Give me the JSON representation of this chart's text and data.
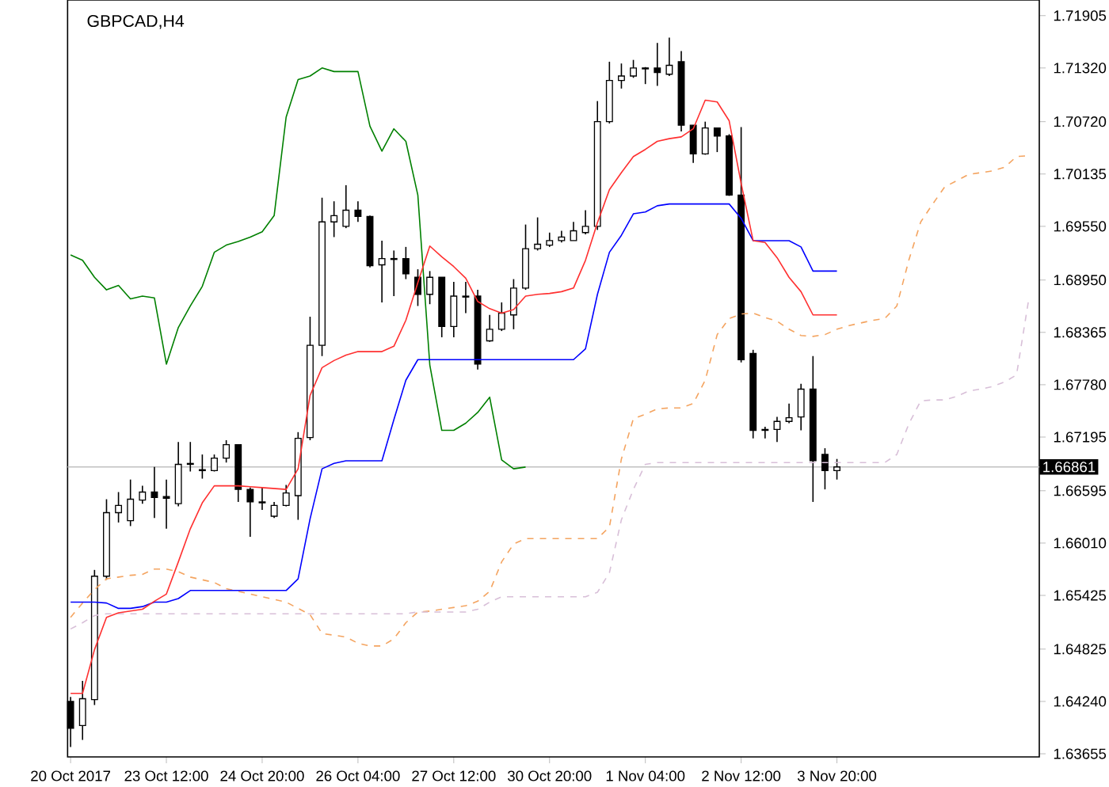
{
  "chart_data": {
    "type": "candlestick",
    "title": "GBPCAD,H4",
    "categories": [
      "20 Oct 2017",
      null,
      null,
      null,
      null,
      null,
      null,
      null,
      "23 Oct 12:00",
      null,
      null,
      null,
      null,
      null,
      null,
      null,
      "24 Oct 20:00",
      null,
      null,
      null,
      null,
      null,
      null,
      null,
      "26 Oct 04:00",
      null,
      null,
      null,
      null,
      null,
      null,
      null,
      "27 Oct 12:00",
      null,
      null,
      null,
      null,
      null,
      null,
      null,
      "30 Oct 20:00",
      null,
      null,
      null,
      null,
      null,
      null,
      null,
      "1 Nov 04:00",
      null,
      null,
      null,
      null,
      null,
      null,
      null,
      "2 Nov 12:00",
      null,
      null,
      null,
      null,
      null,
      null,
      null,
      "3 Nov 20:00",
      null,
      null,
      null,
      null,
      null,
      null,
      null,
      null,
      null,
      null,
      null,
      null,
      null,
      null,
      null,
      null
    ],
    "ohlc": [
      [
        1.6424,
        1.6429,
        1.6373,
        1.6394
      ],
      [
        1.6397,
        1.6447,
        1.6381,
        1.6427
      ],
      [
        1.6426,
        1.6571,
        1.642,
        1.6564
      ],
      [
        1.6564,
        1.665,
        1.656,
        1.6635
      ],
      [
        1.6635,
        1.6658,
        1.6624,
        1.6643
      ],
      [
        1.6626,
        1.6672,
        1.662,
        1.665
      ],
      [
        1.6649,
        1.6665,
        1.6645,
        1.6658
      ],
      [
        1.6658,
        1.6686,
        1.6629,
        1.6652
      ],
      [
        1.6653,
        1.6672,
        1.6617,
        1.6651
      ],
      [
        1.6645,
        1.6714,
        1.6642,
        1.6689
      ],
      [
        1.6689,
        1.6714,
        1.6681,
        1.669
      ],
      [
        1.6682,
        1.67,
        1.6673,
        1.6683
      ],
      [
        1.6682,
        1.67,
        1.6681,
        1.6696
      ],
      [
        1.6696,
        1.6716,
        1.6691,
        1.6711
      ],
      [
        1.6711,
        1.6711,
        1.6647,
        1.6661
      ],
      [
        1.6661,
        1.6663,
        1.6608,
        1.6647
      ],
      [
        1.6647,
        1.6663,
        1.6638,
        1.6646
      ],
      [
        1.6631,
        1.6647,
        1.6629,
        1.6643
      ],
      [
        1.6643,
        1.6666,
        1.6642,
        1.6657
      ],
      [
        1.6654,
        1.6725,
        1.6627,
        1.6718
      ],
      [
        1.6719,
        1.6854,
        1.6716,
        1.6822
      ],
      [
        1.6822,
        1.6987,
        1.681,
        1.696
      ],
      [
        1.696,
        1.6983,
        1.6943,
        1.6967
      ],
      [
        1.6955,
        1.7001,
        1.6953,
        1.6973
      ],
      [
        1.6973,
        1.6983,
        1.696,
        1.6966
      ],
      [
        1.6966,
        1.6967,
        1.6909,
        1.6911
      ],
      [
        1.6912,
        1.6939,
        1.687,
        1.6919
      ],
      [
        1.6919,
        1.6928,
        1.6877,
        1.6918
      ],
      [
        1.6919,
        1.6932,
        1.6896,
        1.6902
      ],
      [
        1.6898,
        1.6907,
        1.6866,
        1.6879
      ],
      [
        1.6879,
        1.6905,
        1.6868,
        1.6898
      ],
      [
        1.6898,
        1.6898,
        1.6831,
        1.6843
      ],
      [
        1.6843,
        1.6893,
        1.6831,
        1.6877
      ],
      [
        1.6877,
        1.6893,
        1.6858,
        1.6876
      ],
      [
        1.6877,
        1.6884,
        1.6795,
        1.6801
      ],
      [
        1.6827,
        1.6856,
        1.6826,
        1.684
      ],
      [
        1.684,
        1.687,
        1.6838,
        1.6858
      ],
      [
        1.6856,
        1.6896,
        1.684,
        1.6886
      ],
      [
        1.6886,
        1.6957,
        1.6884,
        1.693
      ],
      [
        1.693,
        1.6965,
        1.6928,
        1.6935
      ],
      [
        1.6934,
        1.6948,
        1.6932,
        1.6939
      ],
      [
        1.6939,
        1.695,
        1.6937,
        1.6943
      ],
      [
        1.6939,
        1.696,
        1.6939,
        1.695
      ],
      [
        1.6948,
        1.6973,
        1.6946,
        1.6955
      ],
      [
        1.6955,
        1.7095,
        1.6951,
        1.7072
      ],
      [
        1.7072,
        1.7139,
        1.707,
        1.7118
      ],
      [
        1.7118,
        1.7137,
        1.7109,
        1.7123
      ],
      [
        1.7123,
        1.7141,
        1.7121,
        1.7132
      ],
      [
        1.7132,
        1.7133,
        1.7114,
        1.7131
      ],
      [
        1.7132,
        1.716,
        1.7112,
        1.7127
      ],
      [
        1.7125,
        1.7166,
        1.7123,
        1.7135
      ],
      [
        1.7139,
        1.7151,
        1.7061,
        1.7068
      ],
      [
        1.7068,
        1.7068,
        1.7026,
        1.7036
      ],
      [
        1.7036,
        1.7072,
        1.7035,
        1.7065
      ],
      [
        1.7065,
        1.7065,
        1.7038,
        1.7056
      ],
      [
        1.7056,
        1.7058,
        1.6989,
        1.699
      ],
      [
        1.699,
        1.7066,
        1.6803,
        1.6806
      ],
      [
        1.6813,
        1.6817,
        1.6718,
        1.6727
      ],
      [
        1.6727,
        1.6731,
        1.6718,
        1.6728
      ],
      [
        1.6728,
        1.6742,
        1.6714,
        1.6737
      ],
      [
        1.6737,
        1.6757,
        1.6735,
        1.6741
      ],
      [
        1.6742,
        1.6779,
        1.6727,
        1.6773
      ],
      [
        1.6773,
        1.681,
        1.6647,
        1.6693
      ],
      [
        1.67,
        1.6707,
        1.6661,
        1.6682
      ],
      [
        1.6682,
        1.6695,
        1.6672,
        1.66861
      ],
      null,
      null,
      null,
      null,
      null,
      null,
      null,
      null,
      null,
      null,
      null,
      null,
      null,
      null,
      null,
      null
    ],
    "series": [
      {
        "type": "line",
        "color": "#f4a460",
        "line_style": "dashed",
        "values": [
          1.6518,
          1.6534,
          1.6549,
          1.6561,
          1.6563,
          1.6565,
          1.6566,
          1.6572,
          1.6572,
          1.6569,
          1.6563,
          1.656,
          1.6557,
          1.655,
          1.6547,
          1.6544,
          1.6541,
          1.6538,
          1.6535,
          1.6528,
          1.6521,
          1.65,
          1.6498,
          1.6496,
          1.6489,
          1.6486,
          1.6486,
          1.6494,
          1.6512,
          1.6524,
          1.6525,
          1.6527,
          1.6529,
          1.6531,
          1.6536,
          1.6547,
          1.658,
          1.66,
          1.6606,
          1.6606,
          1.6606,
          1.6606,
          1.6606,
          1.6606,
          1.6606,
          1.6619,
          1.6695,
          1.674,
          1.6745,
          1.6751,
          1.6752,
          1.6752,
          1.6757,
          1.6783,
          1.6834,
          1.6852,
          1.6857,
          1.6858,
          1.6853,
          1.6849,
          1.684,
          1.6833,
          1.6832,
          1.6834,
          1.684,
          1.6844,
          1.6847,
          1.685,
          1.6852,
          1.6866,
          1.6917,
          1.696,
          1.698,
          1.6999,
          1.7006,
          1.7013,
          1.7015,
          1.7017,
          1.7021,
          1.7033,
          1.7034
        ]
      },
      {
        "type": "line",
        "color": "#d8bfd8",
        "line_style": "dashed",
        "values": [
          1.6505,
          1.6512,
          1.652,
          1.6522,
          1.6522,
          1.6522,
          1.6522,
          1.6522,
          1.6522,
          1.6522,
          1.6522,
          1.6522,
          1.6522,
          1.6522,
          1.6522,
          1.6522,
          1.6522,
          1.6522,
          1.6522,
          1.6522,
          1.6522,
          1.6522,
          1.6522,
          1.6522,
          1.6522,
          1.6522,
          1.6522,
          1.6522,
          1.6522,
          1.6524,
          1.6524,
          1.6524,
          1.6524,
          1.6524,
          1.6527,
          1.6535,
          1.6541,
          1.6541,
          1.6541,
          1.6541,
          1.6541,
          1.6541,
          1.6541,
          1.6541,
          1.6546,
          1.6568,
          1.6627,
          1.6661,
          1.6689,
          1.6691,
          1.6691,
          1.6691,
          1.6691,
          1.6691,
          1.6691,
          1.6691,
          1.6691,
          1.6691,
          1.6691,
          1.6691,
          1.6691,
          1.6691,
          1.6691,
          1.6691,
          1.6691,
          1.6691,
          1.6691,
          1.6691,
          1.6691,
          1.67,
          1.6734,
          1.676,
          1.6761,
          1.6761,
          1.6765,
          1.6771,
          1.6773,
          1.6776,
          1.6781,
          1.6789,
          1.6872
        ]
      },
      {
        "type": "line",
        "color": "#008000",
        "line_style": "solid",
        "values": [
          1.6923,
          1.6917,
          1.6898,
          1.6884,
          1.6889,
          1.6874,
          1.6877,
          1.6875,
          1.6801,
          1.6842,
          1.6866,
          1.6888,
          1.6926,
          1.6934,
          1.6938,
          1.6943,
          1.6949,
          1.6967,
          1.7077,
          1.7119,
          1.7123,
          1.7132,
          1.7128,
          1.7128,
          1.7128,
          1.7067,
          1.7039,
          1.7064,
          1.705,
          1.699,
          1.68,
          1.6727,
          1.6727,
          1.6735,
          1.6747,
          1.6764,
          1.6694,
          1.6684,
          1.6686,
          null,
          null,
          null,
          null,
          null,
          null,
          null,
          null,
          null,
          null,
          null,
          null,
          null,
          null,
          null,
          null,
          null,
          null,
          null,
          null,
          null,
          null,
          null,
          null,
          null,
          null,
          null,
          null,
          null,
          null,
          null,
          null,
          null,
          null,
          null,
          null,
          null,
          null,
          null,
          null,
          null,
          null
        ]
      },
      {
        "type": "line",
        "color": "#0000ff",
        "line_style": "solid",
        "values": [
          1.6535,
          1.6535,
          1.6535,
          1.6534,
          1.6528,
          1.6528,
          1.653,
          1.6535,
          1.6535,
          1.6539,
          1.6548,
          1.6548,
          1.6548,
          1.6548,
          1.6548,
          1.6548,
          1.6548,
          1.6548,
          1.6548,
          1.6561,
          1.6628,
          1.6684,
          1.669,
          1.6693,
          1.6693,
          1.6693,
          1.6693,
          1.6739,
          1.6783,
          1.6806,
          1.6806,
          1.6806,
          1.6806,
          1.6806,
          1.6806,
          1.6806,
          1.6806,
          1.6806,
          1.6806,
          1.6806,
          1.6806,
          1.6806,
          1.6806,
          1.6818,
          1.6879,
          1.6926,
          1.6945,
          1.6969,
          1.6971,
          1.6978,
          1.698,
          1.698,
          1.698,
          1.698,
          1.698,
          1.698,
          1.6964,
          1.6939,
          1.6939,
          1.6939,
          1.6939,
          1.6932,
          1.6905,
          1.6905,
          1.6905,
          null,
          null,
          null,
          null,
          null,
          null,
          null,
          null,
          null,
          null,
          null,
          null,
          null,
          null,
          null,
          null
        ]
      },
      {
        "type": "line",
        "color": "#ff3030",
        "line_style": "solid",
        "values": [
          1.6433,
          1.6433,
          1.6482,
          1.6518,
          1.6523,
          1.6525,
          1.6527,
          1.6536,
          1.6544,
          1.658,
          1.6617,
          1.6646,
          1.6665,
          1.6665,
          1.6665,
          1.6664,
          1.6663,
          1.6662,
          1.6661,
          1.6684,
          1.6766,
          1.6797,
          1.6805,
          1.6811,
          1.6815,
          1.6815,
          1.6815,
          1.6821,
          1.685,
          1.6892,
          1.6933,
          1.6921,
          1.691,
          1.6897,
          1.6871,
          1.6863,
          1.6858,
          1.6862,
          1.6877,
          1.6879,
          1.688,
          1.6882,
          1.6886,
          1.6917,
          1.6959,
          1.6996,
          1.7015,
          1.7033,
          1.7041,
          1.705,
          1.7053,
          1.7055,
          1.7064,
          1.7096,
          1.7094,
          1.7073,
          1.7003,
          1.6939,
          1.6937,
          1.692,
          1.6898,
          1.6882,
          1.6856,
          1.6856,
          1.6856,
          null,
          null,
          null,
          null,
          null,
          null,
          null,
          null,
          null,
          null,
          null,
          null,
          null,
          null,
          null,
          null
        ]
      }
    ],
    "ref_lines": [
      {
        "axis": "y",
        "value": 1.66861,
        "label": "1.66861",
        "color": "#c0c0c0"
      }
    ],
    "ylim": [
      1.6362,
      1.7208
    ],
    "yticks": [
      1.71905,
      {
        "value": 1.7132,
        "label": "1.71320"
      },
      {
        "value": 1.7072,
        "label": "1.70720"
      },
      1.70135,
      {
        "value": 1.6955,
        "label": "1.69550"
      },
      {
        "value": 1.6895,
        "label": "1.68950"
      },
      1.68365,
      {
        "value": 1.6778,
        "label": "1.67780"
      },
      1.67195,
      1.66595,
      {
        "value": 1.6601,
        "label": "1.66010"
      },
      1.65425,
      1.64825,
      {
        "value": 1.6424,
        "label": "1.64240"
      },
      1.63655
    ]
  }
}
